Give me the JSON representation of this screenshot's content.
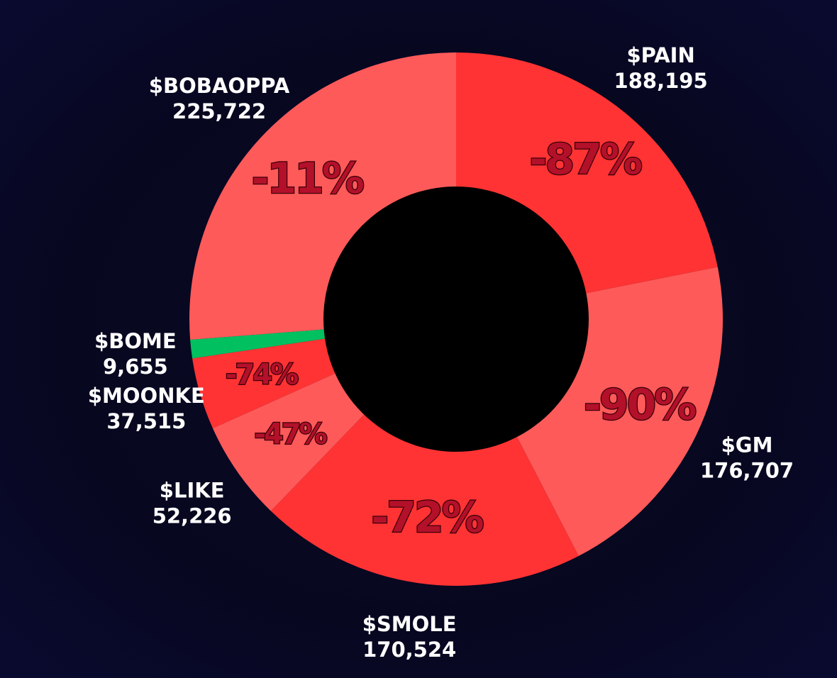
{
  "chart_data": {
    "type": "donut",
    "series": [
      {
        "names": [
          "$PAIN",
          "$GM",
          "$SMOLE",
          "$LIKE",
          "$MOONKE",
          "$BOME",
          "$BOBAOPPA"
        ],
        "values": [
          188195,
          176707,
          170524,
          52226,
          37515,
          9655,
          225722
        ],
        "value_labels": [
          "188,195",
          "176,707",
          "170,524",
          "52,226",
          "37,515",
          "9,655",
          "225,722"
        ],
        "change_labels": [
          "-87%",
          "-90%",
          "-72%",
          "-47%",
          "-74%",
          null,
          "-11%"
        ],
        "colors": [
          "#ff3333",
          "#ff5a5a",
          "#ff3333",
          "#ff5a5a",
          "#ff3333",
          "#00c060",
          "#ff5a5a"
        ]
      }
    ]
  }
}
